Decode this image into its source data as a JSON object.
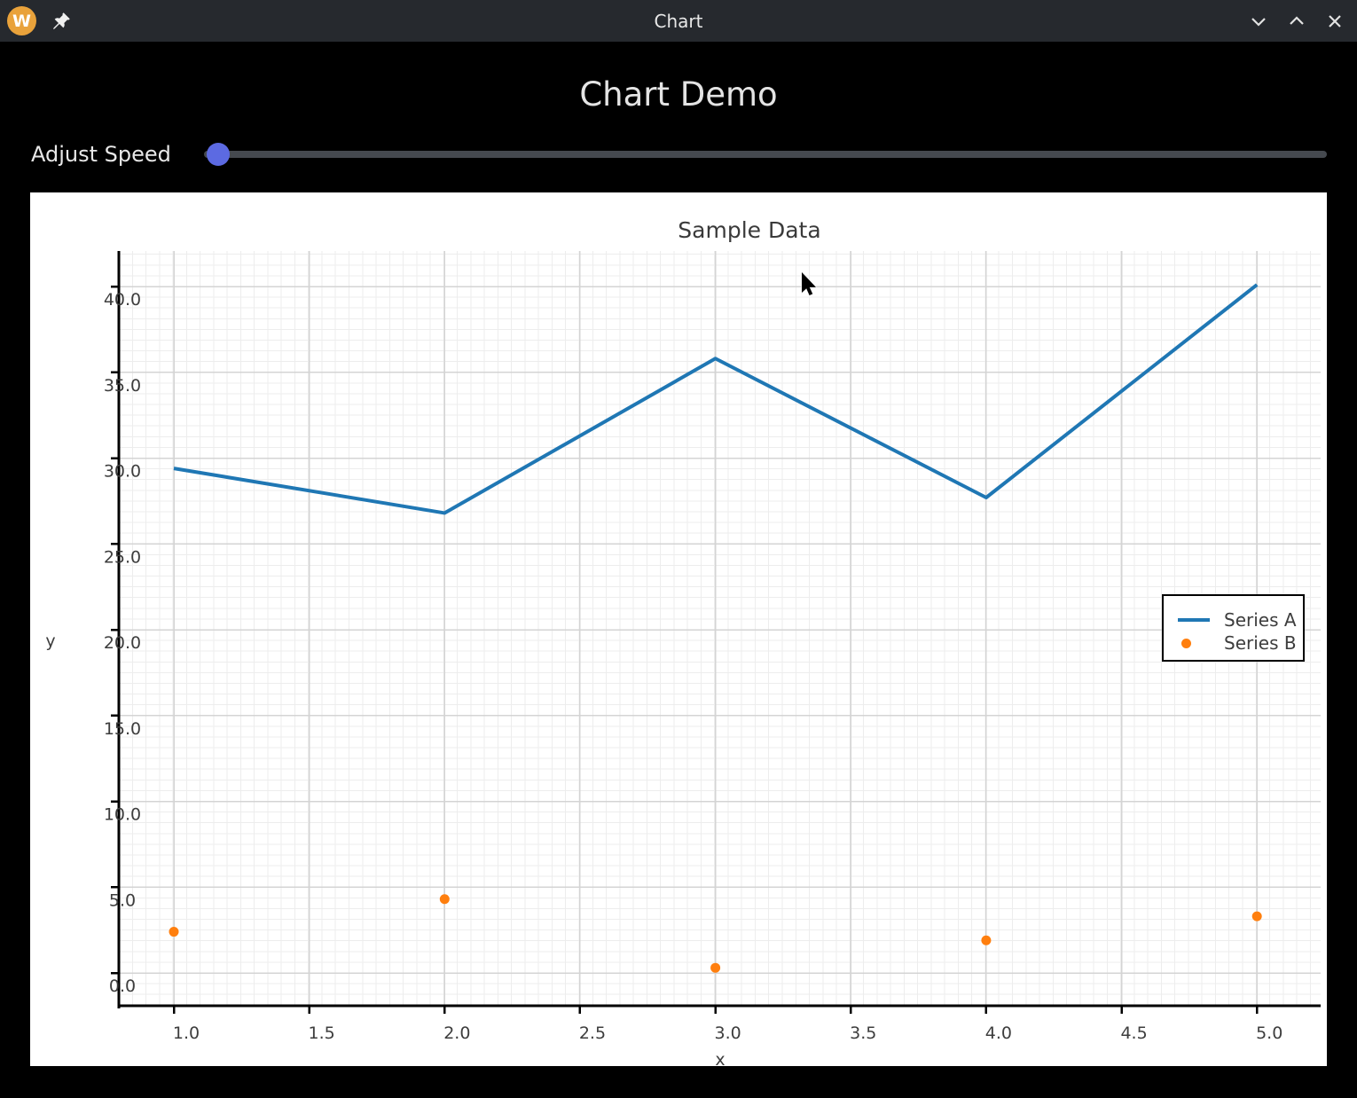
{
  "window": {
    "title": "Chart",
    "app_icon_letter": "W",
    "icons": {
      "pin": "pushpin-icon",
      "minimize": "chevron-down-icon",
      "maximize": "chevron-up-icon",
      "close": "close-icon"
    }
  },
  "header": {
    "title": "Chart Demo"
  },
  "slider": {
    "label": "Adjust Speed",
    "value_percent": 0,
    "handle_color": "#5c6ae2",
    "track_color": "#45494f"
  },
  "chart_data": {
    "type": "line",
    "title": "Sample Data",
    "xlabel": "x",
    "ylabel": "y",
    "x": [
      1.0,
      2.0,
      3.0,
      4.0,
      5.0
    ],
    "series": [
      {
        "name": "Series A",
        "type": "line",
        "color": "#1f77b4",
        "values": [
          29.4,
          26.8,
          35.8,
          27.7,
          40.1
        ]
      },
      {
        "name": "Series B",
        "type": "scatter",
        "color": "#ff7f0e",
        "values": [
          2.4,
          4.3,
          0.3,
          1.9,
          3.3
        ]
      }
    ],
    "x_ticks": [
      1.0,
      1.5,
      2.0,
      2.5,
      3.0,
      3.5,
      4.0,
      4.5,
      5.0
    ],
    "x_tick_labels": [
      "1.0",
      "1.5",
      "2.0",
      "2.5",
      "3.0",
      "3.5",
      "4.0",
      "4.5",
      "5.0"
    ],
    "y_ticks": [
      0,
      5,
      10,
      15,
      20,
      25,
      30,
      35,
      40
    ],
    "y_tick_labels": [
      "0.0",
      "5.0",
      "10.0",
      "15.0",
      "20.0",
      "25.0",
      "30.0",
      "35.0",
      "40.0"
    ],
    "xlim": [
      0.8,
      5.24
    ],
    "ylim": [
      -1.9,
      42.1
    ],
    "grid": true,
    "legend_position": "right-middle",
    "colors": {
      "grid_minor": "#ededed",
      "grid_major": "#d4d4d4",
      "axis": "#000000",
      "tick_text": "#3d3d3d",
      "title_text": "#3a3a3a"
    }
  }
}
